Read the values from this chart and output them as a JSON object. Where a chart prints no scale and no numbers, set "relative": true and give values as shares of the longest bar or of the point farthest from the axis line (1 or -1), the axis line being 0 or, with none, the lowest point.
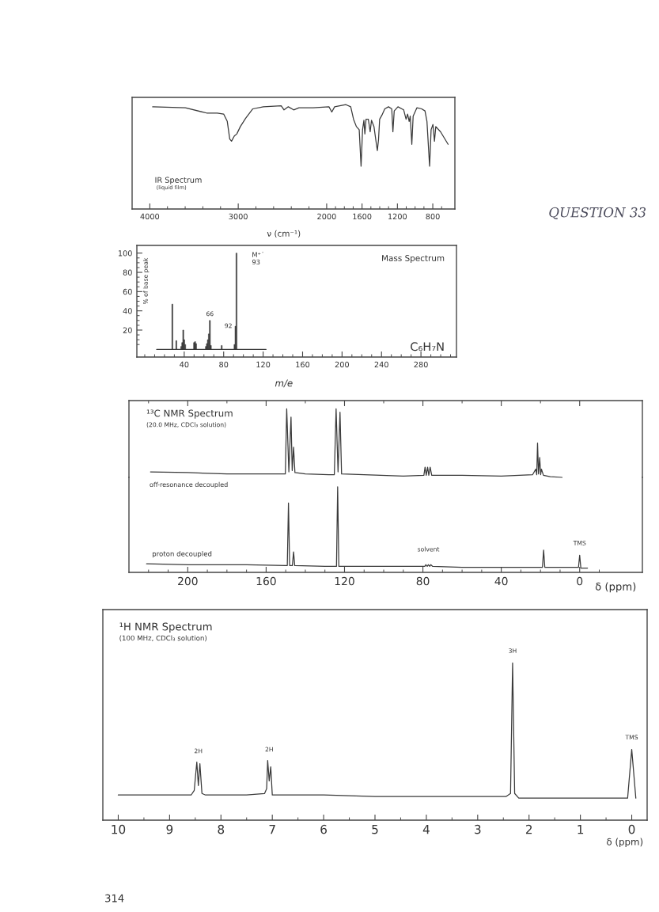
{
  "chart_data": [
    {
      "type": "line",
      "title": "IR Spectrum",
      "subtitle": "(liquid film)",
      "xlabel": "ν (cm⁻¹)",
      "relative": true,
      "color": "#3a3a3a",
      "x": [
        3968,
        3598,
        3357,
        3237,
        3165,
        3124,
        3096,
        3076,
        3044,
        3016,
        2976,
        2916,
        2835,
        2715,
        2514,
        2482,
        2434,
        2373,
        2313,
        2153,
        1974,
        1942,
        1910,
        1782,
        1728,
        1696,
        1664,
        1632,
        1611,
        1594,
        1579,
        1568,
        1555,
        1529,
        1508,
        1493,
        1465,
        1444,
        1427,
        1414,
        1401,
        1375,
        1343,
        1301,
        1264,
        1251,
        1236,
        1194,
        1129,
        1102,
        1085,
        1067,
        1055,
        1037,
        1022,
        980,
        926,
        888,
        866,
        836,
        819,
        798,
        781,
        766,
        712,
        627
      ],
      "values": [
        0.98,
        0.97,
        0.92,
        0.92,
        0.91,
        0.84,
        0.67,
        0.65,
        0.7,
        0.72,
        0.79,
        0.87,
        0.96,
        0.98,
        0.99,
        0.95,
        0.98,
        0.95,
        0.97,
        0.97,
        0.98,
        0.93,
        0.98,
        1.0,
        0.98,
        0.86,
        0.79,
        0.76,
        0.41,
        0.76,
        0.85,
        0.72,
        0.86,
        0.86,
        0.74,
        0.85,
        0.79,
        0.66,
        0.56,
        0.66,
        0.86,
        0.9,
        0.96,
        0.98,
        0.96,
        0.74,
        0.94,
        0.98,
        0.95,
        0.86,
        0.91,
        0.84,
        0.89,
        0.62,
        0.89,
        0.97,
        0.96,
        0.94,
        0.84,
        0.41,
        0.76,
        0.81,
        0.65,
        0.79,
        0.74,
        0.62
      ],
      "xlim": [
        4200,
        550
      ],
      "xticks": [
        4000,
        {
          "value": 3800,
          "label": null
        },
        {
          "value": 3600,
          "label": null
        },
        {
          "value": 3400,
          "label": null
        },
        {
          "value": 3200,
          "label": null
        },
        3000,
        {
          "value": 2800,
          "label": null
        },
        {
          "value": 2600,
          "label": null
        },
        {
          "value": 2400,
          "label": null
        },
        {
          "value": 2200,
          "label": null
        },
        2000,
        {
          "value": 1900,
          "label": null
        },
        {
          "value": 1800,
          "label": null
        },
        {
          "value": 1700,
          "label": null
        },
        1600,
        {
          "value": 1500,
          "label": null
        },
        {
          "value": 1400,
          "label": null
        },
        {
          "value": 1300,
          "label": null
        },
        1200,
        {
          "value": 1100,
          "label": null
        },
        {
          "value": 1000,
          "label": null
        },
        {
          "value": 900,
          "label": null
        },
        800,
        {
          "value": 700,
          "label": null
        }
      ],
      "annotations": [
        "QUESTION 33"
      ]
    },
    {
      "type": "bar",
      "title": "Mass Spectrum",
      "xlabel": "m/e",
      "ylabel": "% of base peak",
      "series": [
        {
          "type": "bar",
          "color": "#3a3a3a",
          "x": [
            28,
            32,
            37,
            38,
            39,
            40,
            41,
            50,
            51,
            52,
            62,
            63,
            64,
            65,
            66,
            67,
            78,
            91,
            92,
            93
          ],
          "values": [
            47,
            9,
            3,
            7,
            20,
            10,
            5,
            7,
            8,
            6,
            3,
            6,
            10,
            16,
            30,
            4,
            4,
            5,
            24,
            100
          ]
        },
        {
          "type": "line",
          "color": "#3a3a3a",
          "x": [
            12,
            123
          ],
          "values": [
            0,
            0
          ]
        }
      ],
      "xlim": [
        -8,
        316
      ],
      "xticks": [
        {
          "value": 0,
          "label": null
        },
        {
          "value": 10,
          "label": null
        },
        {
          "value": 20,
          "label": null
        },
        {
          "value": 30,
          "label": null
        },
        40,
        {
          "value": 50,
          "label": null
        },
        {
          "value": 60,
          "label": null
        },
        {
          "value": 70,
          "label": null
        },
        80,
        {
          "value": 90,
          "label": null
        },
        {
          "value": 100,
          "label": null
        },
        {
          "value": 110,
          "label": null
        },
        120,
        {
          "value": 130,
          "label": null
        },
        {
          "value": 140,
          "label": null
        },
        {
          "value": 150,
          "label": null
        },
        160,
        {
          "value": 170,
          "label": null
        },
        {
          "value": 180,
          "label": null
        },
        {
          "value": 190,
          "label": null
        },
        200,
        {
          "value": 210,
          "label": null
        },
        {
          "value": 220,
          "label": null
        },
        {
          "value": 230,
          "label": null
        },
        240,
        {
          "value": 250,
          "label": null
        },
        {
          "value": 260,
          "label": null
        },
        {
          "value": 270,
          "label": null
        },
        280,
        {
          "value": 290,
          "label": null
        },
        {
          "value": 300,
          "label": null
        },
        {
          "value": 310,
          "label": null
        }
      ],
      "ylim": [
        -8,
        108
      ],
      "yticks": [
        {
          "value": 5,
          "label": null
        },
        {
          "value": 10,
          "label": null
        },
        {
          "value": 15,
          "label": null
        },
        20,
        {
          "value": 25,
          "label": null
        },
        {
          "value": 30,
          "label": null
        },
        {
          "value": 35,
          "label": null
        },
        40,
        {
          "value": 45,
          "label": null
        },
        {
          "value": 50,
          "label": null
        },
        {
          "value": 55,
          "label": null
        },
        60,
        {
          "value": 65,
          "label": null
        },
        {
          "value": 70,
          "label": null
        },
        {
          "value": 75,
          "label": null
        },
        80,
        {
          "value": 85,
          "label": null
        },
        {
          "value": 90,
          "label": null
        },
        {
          "value": 95,
          "label": null
        },
        100
      ],
      "annotations": [
        {
          "text": "M⁺˙\n93",
          "x": 93,
          "y": 100
        },
        {
          "text": "66",
          "x": 66,
          "y": 30
        },
        {
          "text": "92",
          "x": 92,
          "y": 24
        },
        "C₆H₇N"
      ]
    },
    {
      "type": "line",
      "title": "¹³C NMR Spectrum",
      "subtitle": "(20.0 MHz, CDCl₃ solution)",
      "relative": true,
      "color": "#3a3a3a",
      "tick_labels": false,
      "x": [
        219,
        200,
        180,
        165,
        151,
        150.2,
        149.5,
        148.4,
        147.3,
        146.7,
        146.0,
        145.3,
        140,
        128,
        125.2,
        124.3,
        123.3,
        122.3,
        121.5,
        110,
        90,
        79.5,
        78.9,
        78.3,
        77.6,
        77.0,
        76.3,
        75.5,
        60,
        40,
        24,
        22.4,
        21.9,
        21.5,
        21.0,
        20.4,
        19.9,
        19.5,
        18.5,
        15,
        9
      ],
      "values": [
        0.08,
        0.07,
        0.05,
        0.05,
        0.05,
        0.05,
        1.0,
        0.08,
        0.88,
        0.1,
        0.44,
        0.07,
        0.05,
        0.04,
        0.04,
        1.0,
        0.08,
        0.95,
        0.05,
        0.04,
        0.02,
        0.03,
        0.15,
        0.03,
        0.15,
        0.03,
        0.15,
        0.03,
        0.03,
        0.02,
        0.04,
        0.12,
        0.04,
        0.5,
        0.05,
        0.29,
        0.04,
        0.12,
        0.03,
        0.01,
        0
      ],
      "xlim": [
        230,
        -32
      ],
      "xticks": [
        {
          "value": 220,
          "label": null
        },
        200,
        {
          "value": 180,
          "label": null
        },
        160,
        {
          "value": 140,
          "label": null
        },
        120,
        {
          "value": 100,
          "label": null
        },
        80,
        {
          "value": 60,
          "label": null
        },
        40,
        {
          "value": 20,
          "label": null
        },
        0
      ],
      "annotations": [
        "off-resonance decoupled"
      ]
    },
    {
      "type": "line",
      "xlabel": "δ (ppm)",
      "relative": true,
      "color": "#3a3a3a",
      "x": [
        221,
        200,
        170,
        150,
        149.2,
        148.6,
        148.0,
        146.6,
        146.0,
        145.4,
        130,
        124.1,
        123.5,
        122.9,
        100,
        79,
        78.5,
        77.8,
        77.2,
        76.5,
        76,
        75,
        60,
        40,
        19.0,
        18.4,
        17.8,
        10,
        0.6,
        0,
        -0.6,
        -4
      ],
      "values": [
        0.1,
        0.09,
        0.09,
        0.08,
        0.08,
        0.81,
        0.08,
        0.08,
        0.24,
        0.08,
        0.07,
        0.07,
        1.0,
        0.07,
        0.07,
        0.07,
        0.09,
        0.07,
        0.09,
        0.07,
        0.09,
        0.07,
        0.06,
        0.06,
        0.06,
        0.26,
        0.06,
        0.06,
        0.06,
        0.2,
        0.05,
        0.05
      ],
      "xlim": [
        230,
        -32
      ],
      "xticks": [
        {
          "value": 220,
          "label": null
        },
        {
          "value": 210,
          "label": null
        },
        200,
        {
          "value": 190,
          "label": null
        },
        {
          "value": 180,
          "label": null
        },
        {
          "value": 170,
          "label": null
        },
        160,
        {
          "value": 150,
          "label": null
        },
        {
          "value": 140,
          "label": null
        },
        {
          "value": 130,
          "label": null
        },
        120,
        {
          "value": 110,
          "label": null
        },
        {
          "value": 100,
          "label": null
        },
        {
          "value": 90,
          "label": null
        },
        80,
        {
          "value": 70,
          "label": null
        },
        {
          "value": 60,
          "label": null
        },
        {
          "value": 50,
          "label": null
        },
        40,
        {
          "value": 30,
          "label": null
        },
        {
          "value": 20,
          "label": null
        },
        {
          "value": 10,
          "label": null
        },
        0,
        {
          "value": -10,
          "label": null
        }
      ],
      "annotations": [
        "proton decoupled",
        {
          "text": "solvent",
          "x": 77.2,
          "y": 0.09
        },
        {
          "text": "TMS",
          "x": 0,
          "y": 0.2
        }
      ]
    },
    {
      "type": "line",
      "title": "¹H NMR Spectrum",
      "subtitle": "(100 MHz, CDCl₃ solution)",
      "xlabel": "δ (ppm)",
      "relative": true,
      "color": "#3a3a3a",
      "x": [
        10.0,
        9.0,
        8.58,
        8.52,
        8.47,
        8.44,
        8.41,
        8.37,
        8.3,
        7.5,
        7.15,
        7.11,
        7.09,
        7.06,
        7.03,
        7.0,
        6.0,
        5.0,
        4.0,
        2.45,
        2.36,
        2.32,
        2.28,
        2.2,
        1.0,
        0.08,
        0.0,
        -0.08
      ],
      "values": [
        0.16,
        0.16,
        0.16,
        0.19,
        0.37,
        0.22,
        0.36,
        0.17,
        0.16,
        0.16,
        0.17,
        0.2,
        0.38,
        0.25,
        0.34,
        0.16,
        0.16,
        0.15,
        0.15,
        0.15,
        0.17,
        1.0,
        0.17,
        0.14,
        0.14,
        0.14,
        0.45,
        0.14
      ],
      "xlim": [
        10.3,
        -0.3
      ],
      "xticks": [
        10,
        {
          "value": 9.5,
          "label": null
        },
        9,
        {
          "value": 8.5,
          "label": null
        },
        8,
        {
          "value": 7.5,
          "label": null
        },
        7,
        {
          "value": 6.5,
          "label": null
        },
        6,
        {
          "value": 5.5,
          "label": null
        },
        5,
        {
          "value": 4.5,
          "label": null
        },
        4,
        {
          "value": 3.5,
          "label": null
        },
        3,
        {
          "value": 2.5,
          "label": null
        },
        2,
        {
          "value": 1.5,
          "label": null
        },
        1,
        {
          "value": 0.5,
          "label": null
        },
        0
      ],
      "annotations": [
        {
          "text": "2H",
          "x": 8.44,
          "y": 0.37
        },
        {
          "text": "2H",
          "x": 7.06,
          "y": 0.38
        },
        {
          "text": "3H",
          "x": 2.32,
          "y": 1.0
        },
        {
          "text": "TMS",
          "x": 0,
          "y": 0.45
        },
        "314"
      ]
    }
  ]
}
